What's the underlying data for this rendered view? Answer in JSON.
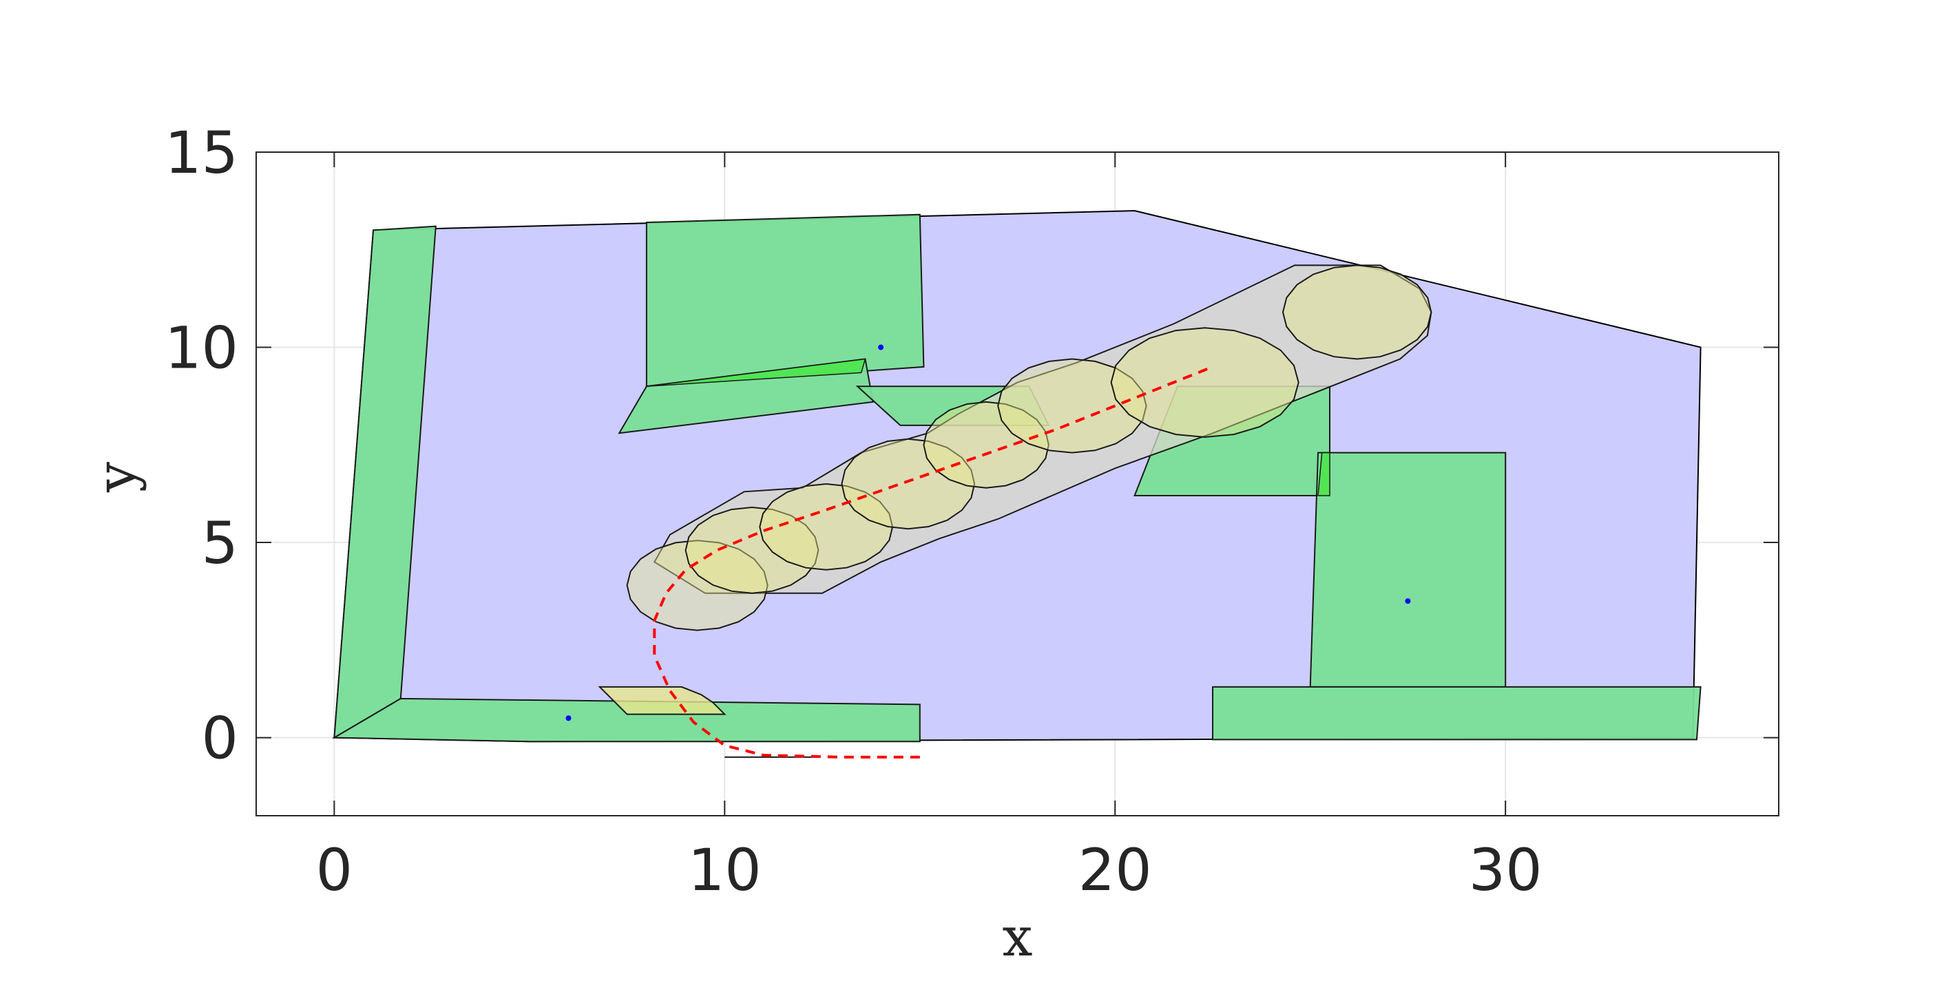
{
  "chart_data": {
    "type": "scatter",
    "title": "",
    "xlabel": "x",
    "ylabel": "y",
    "xlim": [
      -2,
      37
    ],
    "ylim": [
      -2,
      15
    ],
    "xticks": [
      0,
      10,
      20,
      30
    ],
    "yticks": [
      0,
      5,
      10,
      15
    ],
    "xtick_labels": [
      "0",
      "10",
      "20",
      "30"
    ],
    "ytick_labels": [
      "0",
      "5",
      "10",
      "15"
    ],
    "grid": true,
    "legend": "none",
    "colors": {
      "region": "#ccccff",
      "obstacle": "#79df97",
      "overlap": "#4ce64c",
      "reach_set": "#d8d8c8",
      "reach_overlap": "#e6e68c",
      "trajectory": "#ff0000",
      "marker": "#0000ff"
    },
    "region": [
      [
        0,
        0
      ],
      [
        1,
        13
      ],
      [
        20.5,
        13.5
      ],
      [
        35,
        10
      ],
      [
        34.8,
        0
      ],
      [
        5,
        -0.1
      ],
      [
        0,
        0
      ]
    ],
    "obstacles": [
      [
        [
          0,
          0
        ],
        [
          1,
          13
        ],
        [
          2.6,
          13.1
        ],
        [
          1.7,
          1
        ],
        [
          0,
          0
        ]
      ],
      [
        [
          0,
          0
        ],
        [
          1.7,
          1
        ],
        [
          15,
          0.85
        ],
        [
          15,
          -0.1
        ],
        [
          5,
          -0.1
        ],
        [
          0,
          0
        ]
      ],
      [
        [
          8,
          9
        ],
        [
          8,
          13.2
        ],
        [
          15,
          13.4
        ],
        [
          15.1,
          9.5
        ],
        [
          8,
          9
        ]
      ],
      [
        [
          7.3,
          7.8
        ],
        [
          8,
          9
        ],
        [
          13.6,
          9.7
        ],
        [
          13.8,
          8.6
        ],
        [
          7.3,
          7.8
        ]
      ],
      [
        [
          13.4,
          9
        ],
        [
          14.5,
          8
        ],
        [
          18.3,
          8
        ],
        [
          17.8,
          9
        ],
        [
          13.4,
          9
        ]
      ],
      [
        [
          20.5,
          6.2
        ],
        [
          21.6,
          9
        ],
        [
          25.5,
          9
        ],
        [
          25.5,
          6.2
        ],
        [
          20.5,
          6.2
        ]
      ],
      [
        [
          25,
          1.3
        ],
        [
          25.2,
          7.3
        ],
        [
          30,
          7.3
        ],
        [
          30,
          1.3
        ],
        [
          25,
          1.3
        ]
      ],
      [
        [
          22.5,
          -0.05
        ],
        [
          22.5,
          1.3
        ],
        [
          35,
          1.3
        ],
        [
          34.9,
          -0.05
        ],
        [
          22.5,
          -0.05
        ]
      ]
    ],
    "overlaps": [
      [
        [
          8,
          9
        ],
        [
          13.6,
          9.7
        ],
        [
          13.5,
          9.35
        ],
        [
          8,
          9
        ]
      ],
      [
        [
          25.2,
          6.2
        ],
        [
          25.3,
          7.3
        ],
        [
          25.5,
          7.3
        ],
        [
          25.5,
          6.2
        ],
        [
          25.2,
          6.2
        ]
      ]
    ],
    "reach_hull": [
      [
        [
          8.2,
          4.5
        ],
        [
          8.6,
          5.2
        ],
        [
          10.5,
          6.3
        ],
        [
          12,
          6.4
        ],
        [
          13.5,
          7.3
        ],
        [
          15.2,
          7.8
        ],
        [
          16,
          8.3
        ],
        [
          17.5,
          9.1
        ],
        [
          19,
          9.6
        ],
        [
          21.5,
          10.6
        ],
        [
          24.6,
          12.1
        ],
        [
          26.8,
          12.1
        ],
        [
          27.8,
          11.5
        ],
        [
          28.1,
          10.9
        ],
        [
          28,
          10.3
        ],
        [
          27.3,
          9.7
        ],
        [
          22.5,
          7.8
        ],
        [
          20,
          6.9
        ],
        [
          17,
          5.6
        ],
        [
          15.5,
          5.1
        ],
        [
          14,
          4.5
        ],
        [
          12.5,
          3.7
        ],
        [
          9.5,
          3.7
        ],
        [
          8.2,
          4.5
        ]
      ]
    ],
    "reach_sets": [
      {
        "center": [
          9.3,
          3.9
        ],
        "rx": 1.8,
        "ry": 1.15
      },
      {
        "center": [
          10.7,
          4.8
        ],
        "rx": 1.7,
        "ry": 1.1
      },
      {
        "center": [
          12.6,
          5.4
        ],
        "rx": 1.7,
        "ry": 1.1
      },
      {
        "center": [
          14.7,
          6.5
        ],
        "rx": 1.7,
        "ry": 1.15
      },
      {
        "center": [
          16.7,
          7.5
        ],
        "rx": 1.6,
        "ry": 1.1
      },
      {
        "center": [
          18.9,
          8.5
        ],
        "rx": 1.9,
        "ry": 1.2
      },
      {
        "center": [
          22.3,
          9.1
        ],
        "rx": 2.4,
        "ry": 1.4
      },
      {
        "center": [
          26.2,
          10.9
        ],
        "rx": 1.9,
        "ry": 1.2
      }
    ],
    "small_set": [
      [
        6.8,
        1.3
      ],
      [
        7.2,
        0.9
      ],
      [
        7.5,
        0.6
      ],
      [
        8.5,
        0.6
      ],
      [
        10,
        0.6
      ],
      [
        9.7,
        0.9
      ],
      [
        9.4,
        1.1
      ],
      [
        8.9,
        1.3
      ],
      [
        6.8,
        1.3
      ]
    ],
    "ground_line": [
      [
        10,
        -0.5
      ],
      [
        12.3,
        -0.5
      ]
    ],
    "trajectory": {
      "x": [
        15,
        13,
        11,
        10,
        9.2,
        8.6,
        8.2,
        8.2,
        8.5,
        9,
        9.8,
        11,
        12.5,
        14.5,
        16.5,
        18.5,
        20.5,
        22.5
      ],
      "y": [
        -0.5,
        -0.5,
        -0.45,
        -0.2,
        0.4,
        1.2,
        2.1,
        3.0,
        3.7,
        4.3,
        4.8,
        5.3,
        5.8,
        6.5,
        7.2,
        7.9,
        8.7,
        9.5
      ]
    },
    "markers": {
      "x": [
        6,
        14,
        27.5
      ],
      "y": [
        0.5,
        10,
        3.5
      ]
    }
  }
}
